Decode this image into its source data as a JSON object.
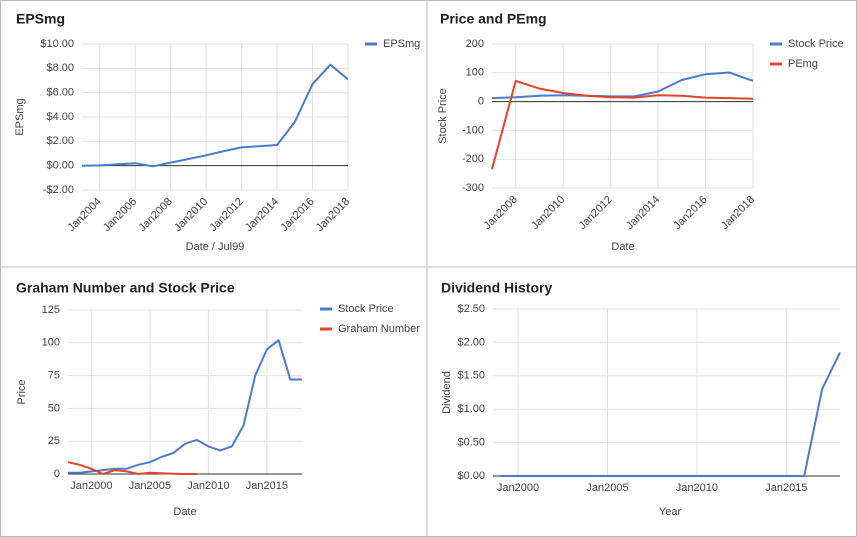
{
  "chart_data": [
    {
      "type": "line",
      "title": "EPSmg",
      "x_label": "Date / Jul99",
      "y_label": "EPSmg",
      "x": [
        2003,
        2004,
        2005,
        2006,
        2007,
        2008,
        2009,
        2010,
        2011,
        2012,
        2013,
        2014,
        2015,
        2016,
        2017,
        2018
      ],
      "xlim": [
        2003,
        2018
      ],
      "xticks": [
        {
          "value": 2004,
          "label": "Jan2004"
        },
        {
          "value": 2006,
          "label": "Jan2006"
        },
        {
          "value": 2008,
          "label": "Jan2008"
        },
        {
          "value": 2010,
          "label": "Jan2010"
        },
        {
          "value": 2012,
          "label": "Jan2012"
        },
        {
          "value": 2014,
          "label": "Jan2014"
        },
        {
          "value": 2016,
          "label": "Jan2016"
        },
        {
          "value": 2018,
          "label": "Jan2018"
        }
      ],
      "ylim": [
        -2,
        10
      ],
      "yticks": [
        {
          "value": -2,
          "label": "-$2.00"
        },
        {
          "value": 0,
          "label": "$0.00"
        },
        {
          "value": 2,
          "label": "$2.00"
        },
        {
          "value": 4,
          "label": "$4.00"
        },
        {
          "value": 6,
          "label": "$6.00"
        },
        {
          "value": 8,
          "label": "$8.00"
        },
        {
          "value": 10,
          "label": "$10.00"
        }
      ],
      "grid": true,
      "legend": "right",
      "series": [
        {
          "name": "EPSmg",
          "color": "#4a7bd0",
          "values": [
            0,
            0.02,
            0.1,
            0.2,
            -0.05,
            0.25,
            0.55,
            0.85,
            1.2,
            1.5,
            1.6,
            1.7,
            3.6,
            6.7,
            8.3,
            7.1
          ]
        }
      ]
    },
    {
      "type": "line",
      "title": "Price and PEmg",
      "x_label": "Date",
      "y_label": "Stock Price",
      "x": [
        2007,
        2008,
        2009,
        2010,
        2011,
        2012,
        2013,
        2014,
        2015,
        2016,
        2017,
        2018
      ],
      "xlim": [
        2007,
        2018
      ],
      "xticks": [
        {
          "value": 2008,
          "label": "Jan2008"
        },
        {
          "value": 2010,
          "label": "Jan2010"
        },
        {
          "value": 2012,
          "label": "Jan2012"
        },
        {
          "value": 2014,
          "label": "Jan2014"
        },
        {
          "value": 2016,
          "label": "Jan2016"
        },
        {
          "value": 2018,
          "label": "Jan2018"
        }
      ],
      "ylim": [
        -300,
        200
      ],
      "yticks": [
        -300,
        -200,
        -100,
        0,
        100,
        200
      ],
      "grid": true,
      "legend": "right",
      "series": [
        {
          "name": "Stock Price",
          "color": "#4a7bd0",
          "values": [
            12,
            15,
            20,
            22,
            20,
            18,
            18,
            35,
            75,
            95,
            101,
            72
          ]
        },
        {
          "name": "PEmg",
          "color": "#e3452a",
          "values": [
            -235,
            72,
            45,
            30,
            20,
            15,
            14,
            22,
            20,
            14,
            12,
            10
          ]
        }
      ]
    },
    {
      "type": "line",
      "title": "Graham Number and Stock Price",
      "x_label": "Date",
      "y_label": "Price",
      "x": [
        1998,
        1999,
        2000,
        2001,
        2002,
        2003,
        2004,
        2005,
        2006,
        2007,
        2008,
        2009,
        2010,
        2011,
        2012,
        2013,
        2014,
        2015,
        2016,
        2017,
        2018
      ],
      "xlim": [
        1998,
        2018
      ],
      "xticks": [
        {
          "value": 2000,
          "label": "Jan2000"
        },
        {
          "value": 2005,
          "label": "Jan2005"
        },
        {
          "value": 2010,
          "label": "Jan2010"
        },
        {
          "value": 2015,
          "label": "Jan2015"
        }
      ],
      "ylim": [
        0,
        125
      ],
      "yticks": [
        0,
        25,
        50,
        75,
        100,
        125
      ],
      "grid": true,
      "legend": "right",
      "series": [
        {
          "name": "Stock Price",
          "color": "#4a7bd0",
          "values": [
            1,
            1,
            2,
            3,
            4,
            4,
            7,
            9,
            13,
            16,
            23,
            26,
            21,
            18,
            21,
            37,
            75,
            95,
            102,
            72,
            72
          ]
        },
        {
          "name": "Graham Number",
          "color": "#e3452a",
          "values": [
            9,
            7,
            4,
            0,
            3,
            2,
            0,
            1,
            0.5,
            0.2,
            0,
            0,
            null,
            null,
            null,
            null,
            null,
            null,
            null,
            null,
            null
          ]
        }
      ]
    },
    {
      "type": "line",
      "title": "Dividend History",
      "x_label": "Year",
      "y_label": "Dividend",
      "x": [
        1999,
        2000,
        2001,
        2002,
        2003,
        2004,
        2005,
        2006,
        2007,
        2008,
        2009,
        2010,
        2011,
        2012,
        2013,
        2014,
        2015,
        2016,
        2017,
        2018
      ],
      "xlim": [
        1998.6,
        2018
      ],
      "xticks": [
        {
          "value": 2000,
          "label": "Jan2000"
        },
        {
          "value": 2005,
          "label": "Jan2005"
        },
        {
          "value": 2010,
          "label": "Jan2010"
        },
        {
          "value": 2015,
          "label": "Jan2015"
        }
      ],
      "ylim": [
        0,
        2.5
      ],
      "yticks": [
        {
          "value": 0,
          "label": "$0.00"
        },
        {
          "value": 0.5,
          "label": "$0.50"
        },
        {
          "value": 1,
          "label": "$1.00"
        },
        {
          "value": 1.5,
          "label": "$1.50"
        },
        {
          "value": 2,
          "label": "$2.00"
        },
        {
          "value": 2.5,
          "label": "$2.50"
        }
      ],
      "grid": true,
      "legend": "none",
      "series": [
        {
          "color": "#4a7bd0",
          "values": [
            0,
            0,
            0,
            0,
            0,
            0,
            0,
            0,
            0,
            0,
            0,
            0,
            0,
            0,
            0,
            0,
            0,
            0,
            1.3,
            1.85
          ]
        }
      ]
    }
  ]
}
